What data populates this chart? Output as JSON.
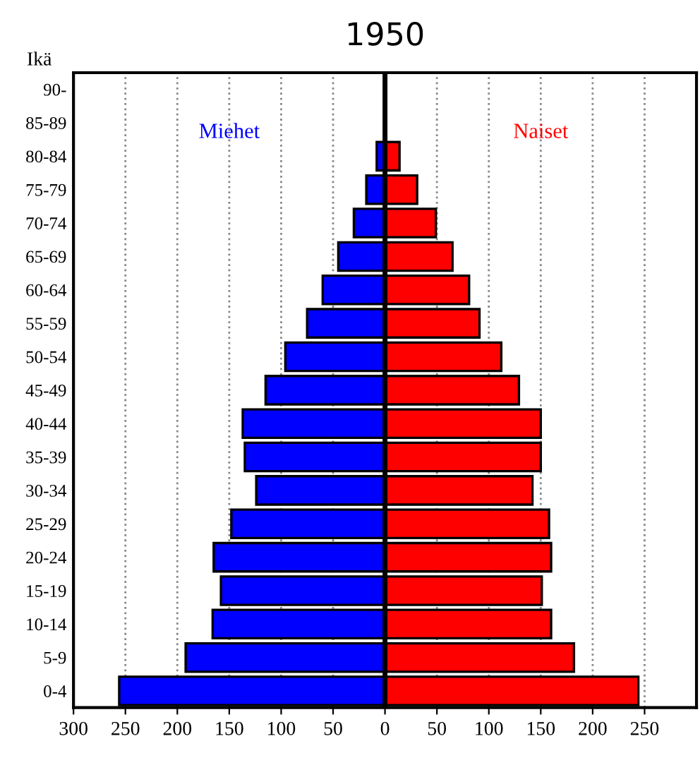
{
  "chart_data": {
    "type": "bar",
    "orientation": "horizontal",
    "title": "1950",
    "ylabel": "Ikä",
    "categories": [
      "90-",
      "85-89",
      "80-84",
      "75-79",
      "70-74",
      "65-69",
      "60-64",
      "55-59",
      "50-54",
      "45-49",
      "40-44",
      "35-39",
      "30-34",
      "25-29",
      "20-24",
      "15-19",
      "10-14",
      "5-9",
      "0-4"
    ],
    "series": [
      {
        "name": "Miehet",
        "color": "#0000ff",
        "values": [
          null,
          null,
          -8,
          -18,
          -30,
          -45,
          -60,
          -75,
          -96,
          -115,
          -137,
          -135,
          -124,
          -148,
          -165,
          -158,
          -166,
          -192,
          -256
        ]
      },
      {
        "name": "Naiset",
        "color": "#ff0000",
        "values": [
          1,
          null,
          14,
          31,
          49,
          65,
          81,
          91,
          112,
          129,
          150,
          150,
          142,
          158,
          160,
          151,
          160,
          182,
          244
        ]
      }
    ],
    "xlim": [
      -300,
      300
    ],
    "xticks": [
      {
        "value": -300,
        "label": "300"
      },
      {
        "value": -250,
        "label": "250"
      },
      {
        "value": -200,
        "label": "200"
      },
      {
        "value": -150,
        "label": "150"
      },
      {
        "value": -100,
        "label": "100"
      },
      {
        "value": -50,
        "label": "50"
      },
      0,
      50,
      100,
      150,
      200,
      250
    ],
    "ref_lines": [
      {
        "axis": "x",
        "value": 0,
        "color": "#000000"
      }
    ],
    "grid": "x",
    "legend": false,
    "stacked": true
  }
}
